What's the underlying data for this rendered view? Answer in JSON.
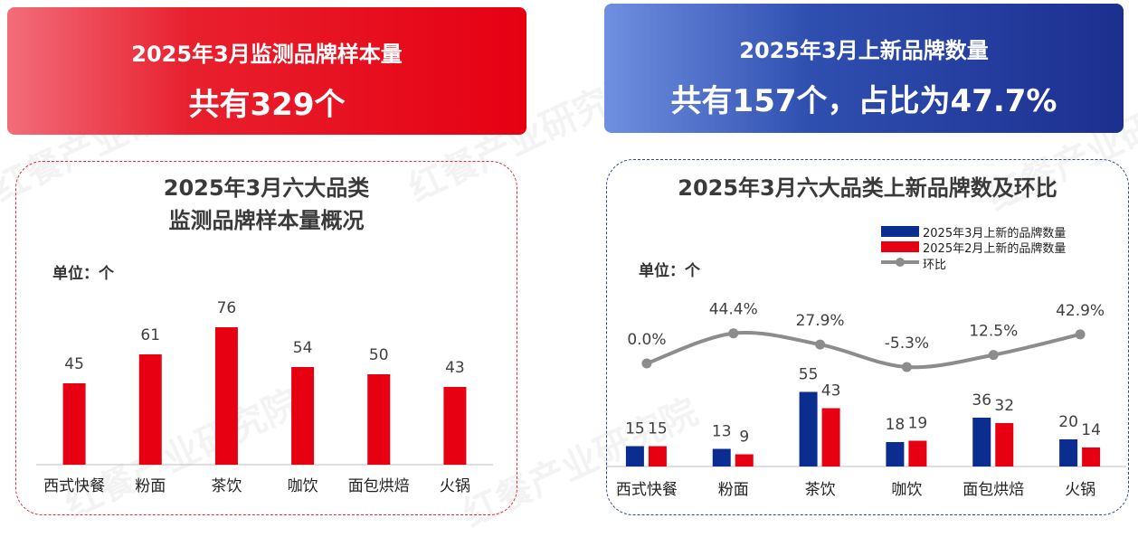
{
  "banner_left": {
    "line1": "2025年3月监测品牌样本量",
    "line2": "共有329个"
  },
  "banner_right": {
    "line1": "2025年3月上新品牌数量",
    "line2": "共有157个，占比为47.7%"
  },
  "watermark_text": "红餐产业研究院",
  "colors": {
    "red": "#e60012",
    "blue": "#0b2d8f",
    "line": "#8c8c8c"
  },
  "chart_data": [
    {
      "type": "bar",
      "title": "2025年3月六大品类\n监测品牌样本量概况",
      "title_lines": [
        "2025年3月六大品类",
        "监测品牌样本量概况"
      ],
      "unit_label": "单位：个",
      "categories": [
        "西式快餐",
        "粉面",
        "茶饮",
        "咖饮",
        "面包烘焙",
        "火锅"
      ],
      "values": [
        45,
        61,
        76,
        54,
        50,
        43
      ],
      "value_labels": [
        "45",
        "61",
        "76",
        "54",
        "50",
        "43"
      ],
      "grid": false
    },
    {
      "type": "bar",
      "title": "2025年3月六大品类上新品牌数及环比",
      "unit_label": "单位：个",
      "categories": [
        "西式快餐",
        "粉面",
        "茶饮",
        "咖饮",
        "面包烘焙",
        "火锅"
      ],
      "series": [
        {
          "name": "2025年3月上新的品牌数量",
          "values": [
            15,
            13,
            55,
            18,
            36,
            20
          ],
          "labels": [
            "15",
            "13",
            "55",
            "18",
            "36",
            "20"
          ]
        },
        {
          "name": "2025年2月上新的品牌数量",
          "values": [
            15,
            9,
            43,
            19,
            32,
            14
          ],
          "labels": [
            "15",
            "9",
            "43",
            "19",
            "32",
            "14"
          ]
        },
        {
          "name": "环比",
          "type": "line",
          "values": [
            0.0,
            44.4,
            27.9,
            -5.3,
            12.5,
            42.9
          ],
          "labels": [
            "0.0%",
            "44.4%",
            "27.9%",
            "-5.3%",
            "12.5%",
            "42.9%"
          ]
        }
      ],
      "legend_position": "top-right",
      "grid": false
    }
  ]
}
